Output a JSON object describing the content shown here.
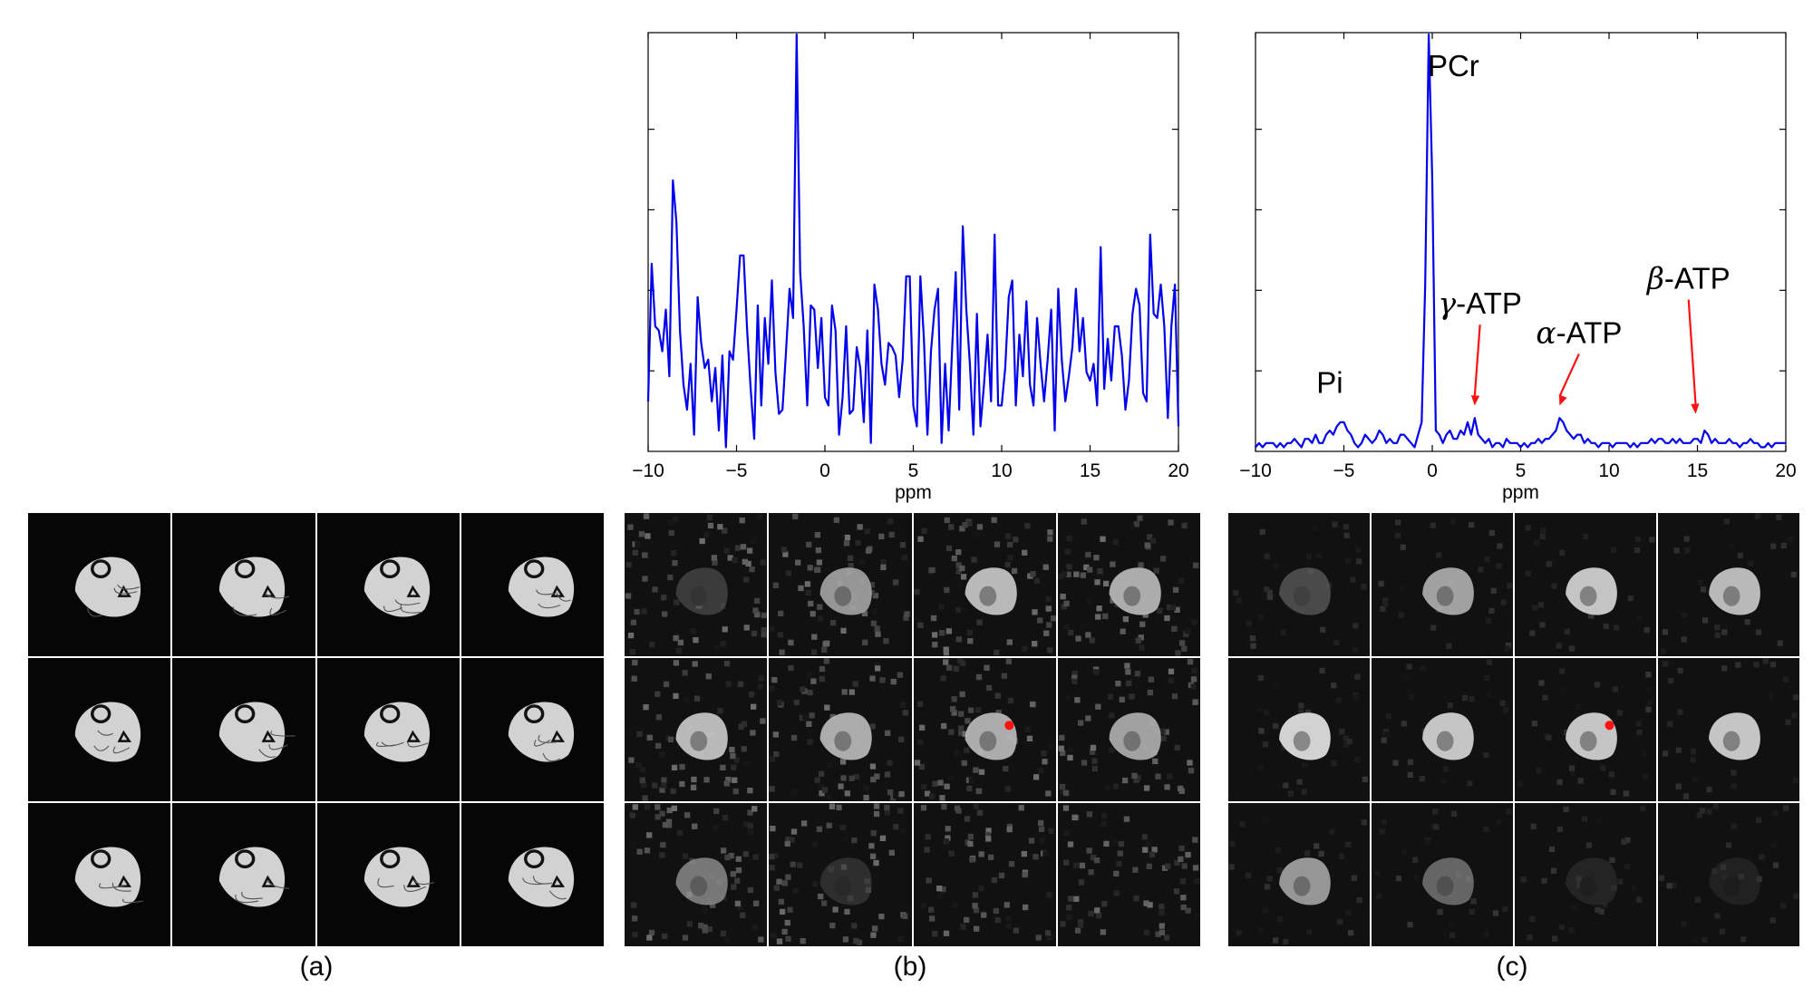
{
  "panel_labels": {
    "a": "(a)",
    "b": "(b)",
    "c": "(c)"
  },
  "colors": {
    "trace": "#0000ee",
    "marker": "#ff1111"
  },
  "chart_data": [
    {
      "type": "line",
      "title": "",
      "xlabel": "ppm",
      "ylabel": "",
      "xlim": [
        -10,
        20
      ],
      "xticks": [
        "−10",
        "−5",
        "0",
        "5",
        "10",
        "15",
        "20"
      ],
      "series": [
        {
          "x": [
            -10.0,
            -9.8,
            -9.6,
            -9.4,
            -9.2,
            -9.0,
            -8.8,
            -8.6,
            -8.4,
            -8.2,
            -8.0,
            -7.8,
            -7.6,
            -7.4,
            -7.2,
            -7.0,
            -6.8,
            -6.6,
            -6.4,
            -6.2,
            -6.0,
            -5.8,
            -5.6,
            -5.4,
            -5.2,
            -5.0,
            -4.8,
            -4.6,
            -4.4,
            -4.2,
            -4.0,
            -3.8,
            -3.6,
            -3.4,
            -3.2,
            -3.0,
            -2.8,
            -2.6,
            -2.4,
            -2.2,
            -2.0,
            -1.8,
            -1.6,
            -1.4,
            -1.2,
            -1.0,
            -0.8,
            -0.6,
            -0.4,
            -0.2,
            0.0,
            0.2,
            0.4,
            0.6,
            0.8,
            1.0,
            1.2,
            1.4,
            1.6,
            1.8,
            2.0,
            2.2,
            2.4,
            2.6,
            2.8,
            3.0,
            3.2,
            3.4,
            3.6,
            3.8,
            4.0,
            4.2,
            4.4,
            4.6,
            4.8,
            5.0,
            5.2,
            5.4,
            5.6,
            5.8,
            6.0,
            6.2,
            6.4,
            6.6,
            6.8,
            7.0,
            7.2,
            7.4,
            7.6,
            7.8,
            8.0,
            8.2,
            8.4,
            8.6,
            8.8,
            9.0,
            9.2,
            9.4,
            9.6,
            9.8,
            10.0,
            10.2,
            10.4,
            10.6,
            10.8,
            11.0,
            11.2,
            11.4,
            11.6,
            11.8,
            12.0,
            12.2,
            12.4,
            12.6,
            12.8,
            13.0,
            13.2,
            13.4,
            13.6,
            13.8,
            14.0,
            14.2,
            14.4,
            14.6,
            14.8,
            15.0,
            15.2,
            15.4,
            15.6,
            15.8,
            16.0,
            16.2,
            16.4,
            16.6,
            16.8,
            17.0,
            17.2,
            17.4,
            17.6,
            17.8,
            18.0,
            18.2,
            18.4,
            18.6,
            18.8,
            19.0,
            19.2,
            19.4,
            19.6,
            19.8,
            20.0
          ],
          "y": [
            0.12,
            0.45,
            0.3,
            0.29,
            0.24,
            0.34,
            0.18,
            0.65,
            0.55,
            0.29,
            0.16,
            0.1,
            0.21,
            0.04,
            0.37,
            0.26,
            0.2,
            0.22,
            0.12,
            0.2,
            0.05,
            0.23,
            0.01,
            0.24,
            0.22,
            0.34,
            0.47,
            0.47,
            0.29,
            0.15,
            0.03,
            0.35,
            0.11,
            0.32,
            0.21,
            0.41,
            0.19,
            0.09,
            0.1,
            0.24,
            0.39,
            0.32,
            1.0,
            0.43,
            0.3,
            0.11,
            0.35,
            0.34,
            0.2,
            0.32,
            0.13,
            0.11,
            0.35,
            0.29,
            0.04,
            0.13,
            0.3,
            0.09,
            0.1,
            0.25,
            0.2,
            0.07,
            0.29,
            0.02,
            0.4,
            0.34,
            0.21,
            0.16,
            0.26,
            0.25,
            0.23,
            0.13,
            0.22,
            0.42,
            0.42,
            0.11,
            0.06,
            0.42,
            0.27,
            0.04,
            0.24,
            0.34,
            0.39,
            0.02,
            0.21,
            0.05,
            0.25,
            0.43,
            0.1,
            0.54,
            0.34,
            0.21,
            0.04,
            0.33,
            0.06,
            0.16,
            0.28,
            0.12,
            0.52,
            0.11,
            0.11,
            0.2,
            0.37,
            0.41,
            0.11,
            0.28,
            0.18,
            0.36,
            0.16,
            0.11,
            0.32,
            0.21,
            0.12,
            0.22,
            0.34,
            0.05,
            0.39,
            0.22,
            0.12,
            0.18,
            0.25,
            0.39,
            0.24,
            0.32,
            0.19,
            0.17,
            0.21,
            0.11,
            0.49,
            0.15,
            0.27,
            0.17,
            0.3,
            0.3,
            0.23,
            0.1,
            0.17,
            0.33,
            0.39,
            0.35,
            0.14,
            0.12,
            0.52,
            0.33,
            0.32,
            0.4,
            0.3,
            0.08,
            0.3,
            0.4,
            0.06
          ]
        }
      ]
    },
    {
      "type": "line",
      "title": "",
      "xlabel": "ppm",
      "ylabel": "",
      "xlim": [
        -10,
        20
      ],
      "xticks": [
        "−10",
        "−5",
        "0",
        "5",
        "10",
        "15",
        "20"
      ],
      "annotations": [
        {
          "text": "PCr",
          "x": 1.2,
          "y": 0.9
        },
        {
          "text": "Pi",
          "x": -5.8,
          "y": 0.14
        },
        {
          "text": "γ-ATP",
          "greek": "γ",
          "rest": "-ATP",
          "x": 2.7,
          "y": 0.33,
          "arrow_to": [
            2.4,
            0.11
          ]
        },
        {
          "text": "α-ATP",
          "greek": "α",
          "rest": "-ATP",
          "x": 8.3,
          "y": 0.26,
          "arrow_to": [
            7.2,
            0.11
          ]
        },
        {
          "text": "β-ATP",
          "greek": "β",
          "rest": "-ATP",
          "x": 14.5,
          "y": 0.39,
          "arrow_to": [
            14.9,
            0.09
          ]
        }
      ],
      "series": [
        {
          "x": [
            -10.0,
            -9.8,
            -9.6,
            -9.4,
            -9.2,
            -9.0,
            -8.8,
            -8.6,
            -8.4,
            -8.2,
            -8.0,
            -7.8,
            -7.6,
            -7.4,
            -7.2,
            -7.0,
            -6.8,
            -6.6,
            -6.4,
            -6.2,
            -6.0,
            -5.8,
            -5.6,
            -5.4,
            -5.2,
            -5.0,
            -4.8,
            -4.6,
            -4.4,
            -4.2,
            -4.0,
            -3.8,
            -3.6,
            -3.4,
            -3.2,
            -3.0,
            -2.8,
            -2.6,
            -2.4,
            -2.2,
            -2.0,
            -1.8,
            -1.6,
            -1.4,
            -1.2,
            -1.0,
            -0.8,
            -0.6,
            -0.4,
            -0.2,
            0.0,
            0.2,
            0.4,
            0.6,
            0.8,
            1.0,
            1.2,
            1.4,
            1.6,
            1.8,
            2.0,
            2.2,
            2.4,
            2.6,
            2.8,
            3.0,
            3.2,
            3.4,
            3.6,
            3.8,
            4.0,
            4.2,
            4.4,
            4.6,
            4.8,
            5.0,
            5.2,
            5.4,
            5.6,
            5.8,
            6.0,
            6.2,
            6.4,
            6.6,
            6.8,
            7.0,
            7.2,
            7.4,
            7.6,
            7.8,
            8.0,
            8.2,
            8.4,
            8.6,
            8.8,
            9.0,
            9.2,
            9.4,
            9.6,
            9.8,
            10.0,
            10.2,
            10.4,
            10.6,
            10.8,
            11.0,
            11.2,
            11.4,
            11.6,
            11.8,
            12.0,
            12.2,
            12.4,
            12.6,
            12.8,
            13.0,
            13.2,
            13.4,
            13.6,
            13.8,
            14.0,
            14.2,
            14.4,
            14.6,
            14.8,
            15.0,
            15.2,
            15.4,
            15.6,
            15.8,
            16.0,
            16.2,
            16.4,
            16.6,
            16.8,
            17.0,
            17.2,
            17.4,
            17.6,
            17.8,
            18.0,
            18.2,
            18.4,
            18.6,
            18.8,
            19.0,
            19.2,
            19.4,
            19.6,
            19.8,
            20.0
          ],
          "y": [
            0.01,
            0.02,
            0.01,
            0.02,
            0.02,
            0.02,
            0.01,
            0.02,
            0.01,
            0.02,
            0.02,
            0.03,
            0.02,
            0.01,
            0.03,
            0.03,
            0.02,
            0.04,
            0.02,
            0.02,
            0.04,
            0.05,
            0.04,
            0.06,
            0.07,
            0.07,
            0.05,
            0.04,
            0.02,
            0.01,
            0.02,
            0.04,
            0.03,
            0.02,
            0.03,
            0.05,
            0.04,
            0.02,
            0.03,
            0.02,
            0.02,
            0.04,
            0.04,
            0.03,
            0.02,
            0.01,
            0.04,
            0.07,
            0.4,
            1.0,
            0.65,
            0.05,
            0.04,
            0.02,
            0.04,
            0.05,
            0.03,
            0.03,
            0.05,
            0.04,
            0.07,
            0.04,
            0.08,
            0.04,
            0.03,
            0.02,
            0.03,
            0.01,
            0.02,
            0.02,
            0.01,
            0.03,
            0.02,
            0.02,
            0.02,
            0.01,
            0.02,
            0.01,
            0.02,
            0.02,
            0.03,
            0.02,
            0.03,
            0.03,
            0.04,
            0.05,
            0.08,
            0.07,
            0.05,
            0.04,
            0.03,
            0.04,
            0.04,
            0.02,
            0.03,
            0.02,
            0.02,
            0.01,
            0.02,
            0.02,
            0.02,
            0.01,
            0.02,
            0.02,
            0.02,
            0.02,
            0.01,
            0.02,
            0.01,
            0.02,
            0.02,
            0.02,
            0.03,
            0.02,
            0.03,
            0.03,
            0.02,
            0.02,
            0.03,
            0.02,
            0.03,
            0.02,
            0.02,
            0.02,
            0.03,
            0.03,
            0.02,
            0.05,
            0.04,
            0.02,
            0.03,
            0.02,
            0.02,
            0.02,
            0.03,
            0.02,
            0.02,
            0.01,
            0.02,
            0.02,
            0.03,
            0.02,
            0.02,
            0.01,
            0.01,
            0.02,
            0.01,
            0.02,
            0.02,
            0.02,
            0.02
          ]
        }
      ]
    }
  ]
}
